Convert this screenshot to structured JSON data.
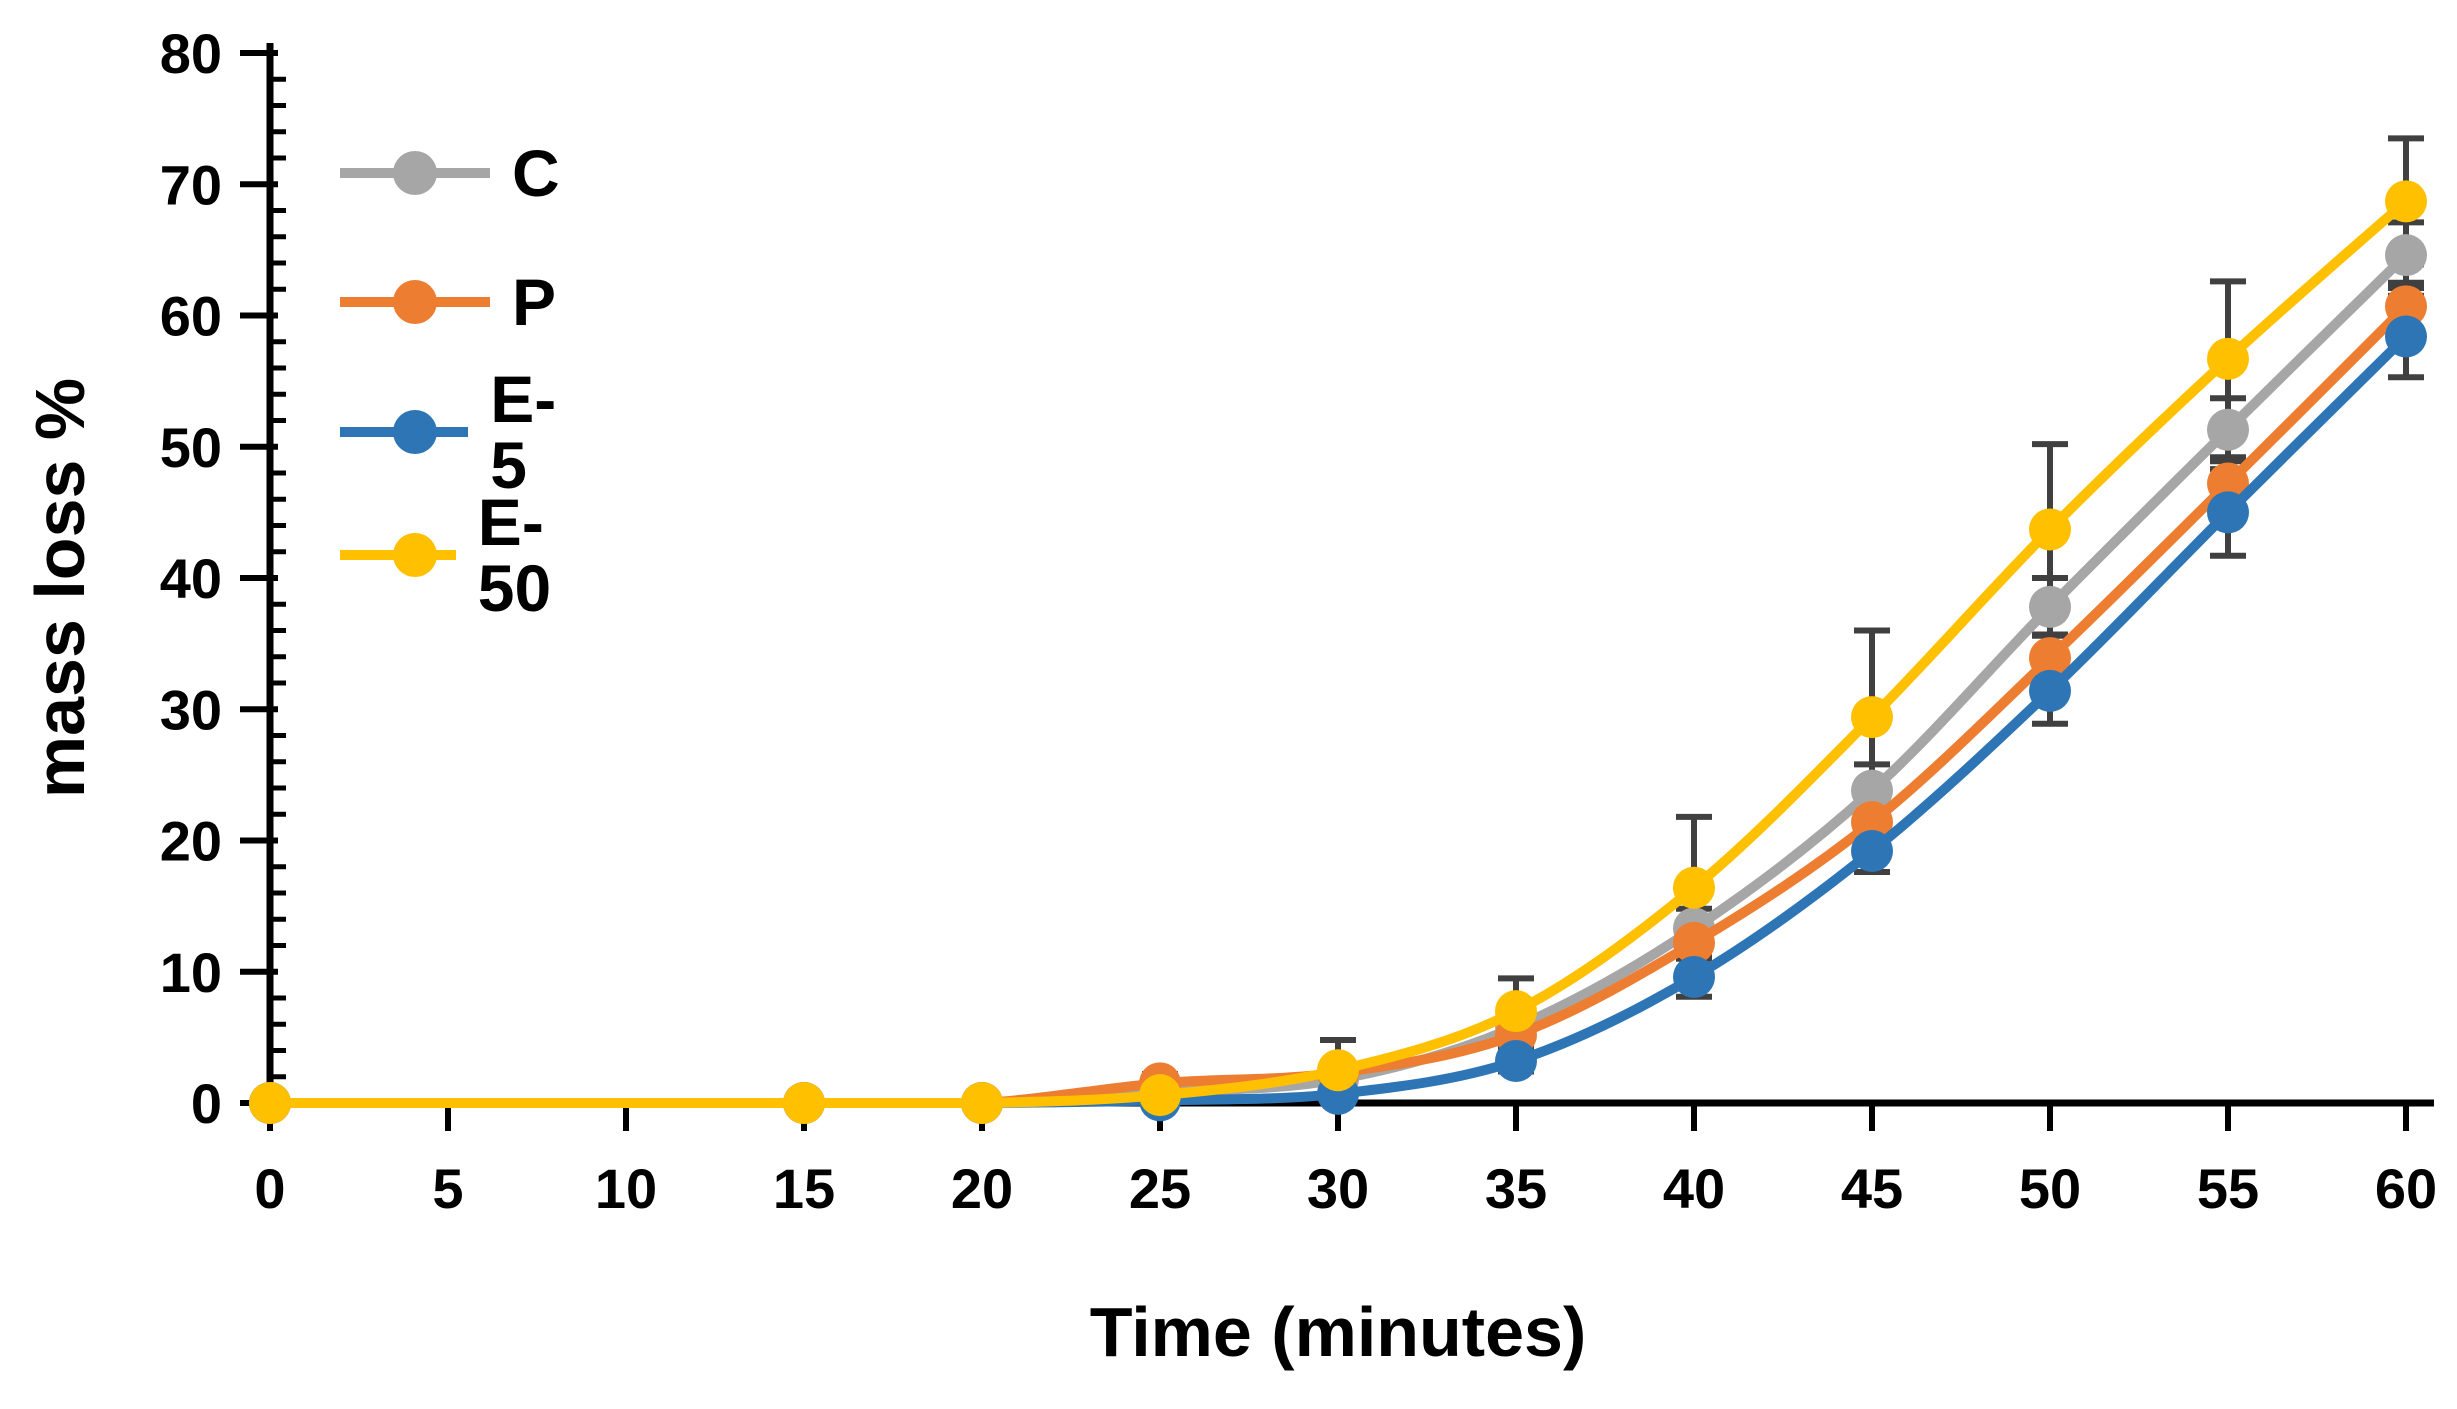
{
  "chart_data": {
    "type": "line",
    "title": "",
    "xlabel": "Time (minutes)",
    "ylabel": "mass loss %",
    "x": [
      0,
      15,
      20,
      25,
      30,
      35,
      40,
      45,
      50,
      55,
      60
    ],
    "xlim": [
      0,
      60
    ],
    "ylim": [
      0,
      80
    ],
    "x_ticks": [
      0,
      5,
      10,
      15,
      20,
      25,
      30,
      35,
      40,
      45,
      50,
      55,
      60
    ],
    "y_ticks": [
      0,
      10,
      20,
      30,
      40,
      50,
      60,
      70,
      80
    ],
    "y_minor_step": 2,
    "grid": false,
    "legend_position": "top-left",
    "marker_style": "circle",
    "line_style": "smooth",
    "error_bar_color": "#404040",
    "axis_color": "#000000",
    "series": [
      {
        "name": "C",
        "color": "#A6A6A6",
        "values": [
          0,
          0,
          0,
          0.8,
          1.8,
          5.8,
          13.3,
          23.8,
          37.8,
          51.3,
          64.6
        ],
        "errors": [
          0,
          0,
          0,
          0.3,
          0.5,
          1.2,
          1.5,
          2.0,
          2.2,
          2.4,
          2.5
        ]
      },
      {
        "name": "P",
        "color": "#ED7D31",
        "values": [
          0,
          0,
          0,
          1.5,
          2.3,
          5.2,
          12.2,
          21.4,
          33.9,
          47.2,
          60.7
        ],
        "errors": [
          0,
          0,
          0,
          0.7,
          0.8,
          1.0,
          1.2,
          1.5,
          1.8,
          2.0,
          1.8
        ]
      },
      {
        "name": "E-5",
        "color": "#2E75B6",
        "values": [
          0,
          0,
          0,
          0.2,
          0.7,
          3.2,
          9.6,
          19.2,
          31.4,
          45.0,
          58.4
        ],
        "errors": [
          0,
          0,
          0,
          0.2,
          0.5,
          0.8,
          1.5,
          1.6,
          2.5,
          3.3,
          3.1
        ]
      },
      {
        "name": "E-50",
        "color": "#FFC000",
        "values": [
          0,
          0,
          0,
          0.6,
          2.5,
          7.0,
          16.4,
          29.4,
          43.7,
          56.7,
          68.7
        ],
        "errors": [
          0,
          0,
          0,
          0.7,
          2.3,
          2.5,
          5.4,
          6.6,
          6.5,
          5.9,
          4.8
        ]
      }
    ]
  }
}
